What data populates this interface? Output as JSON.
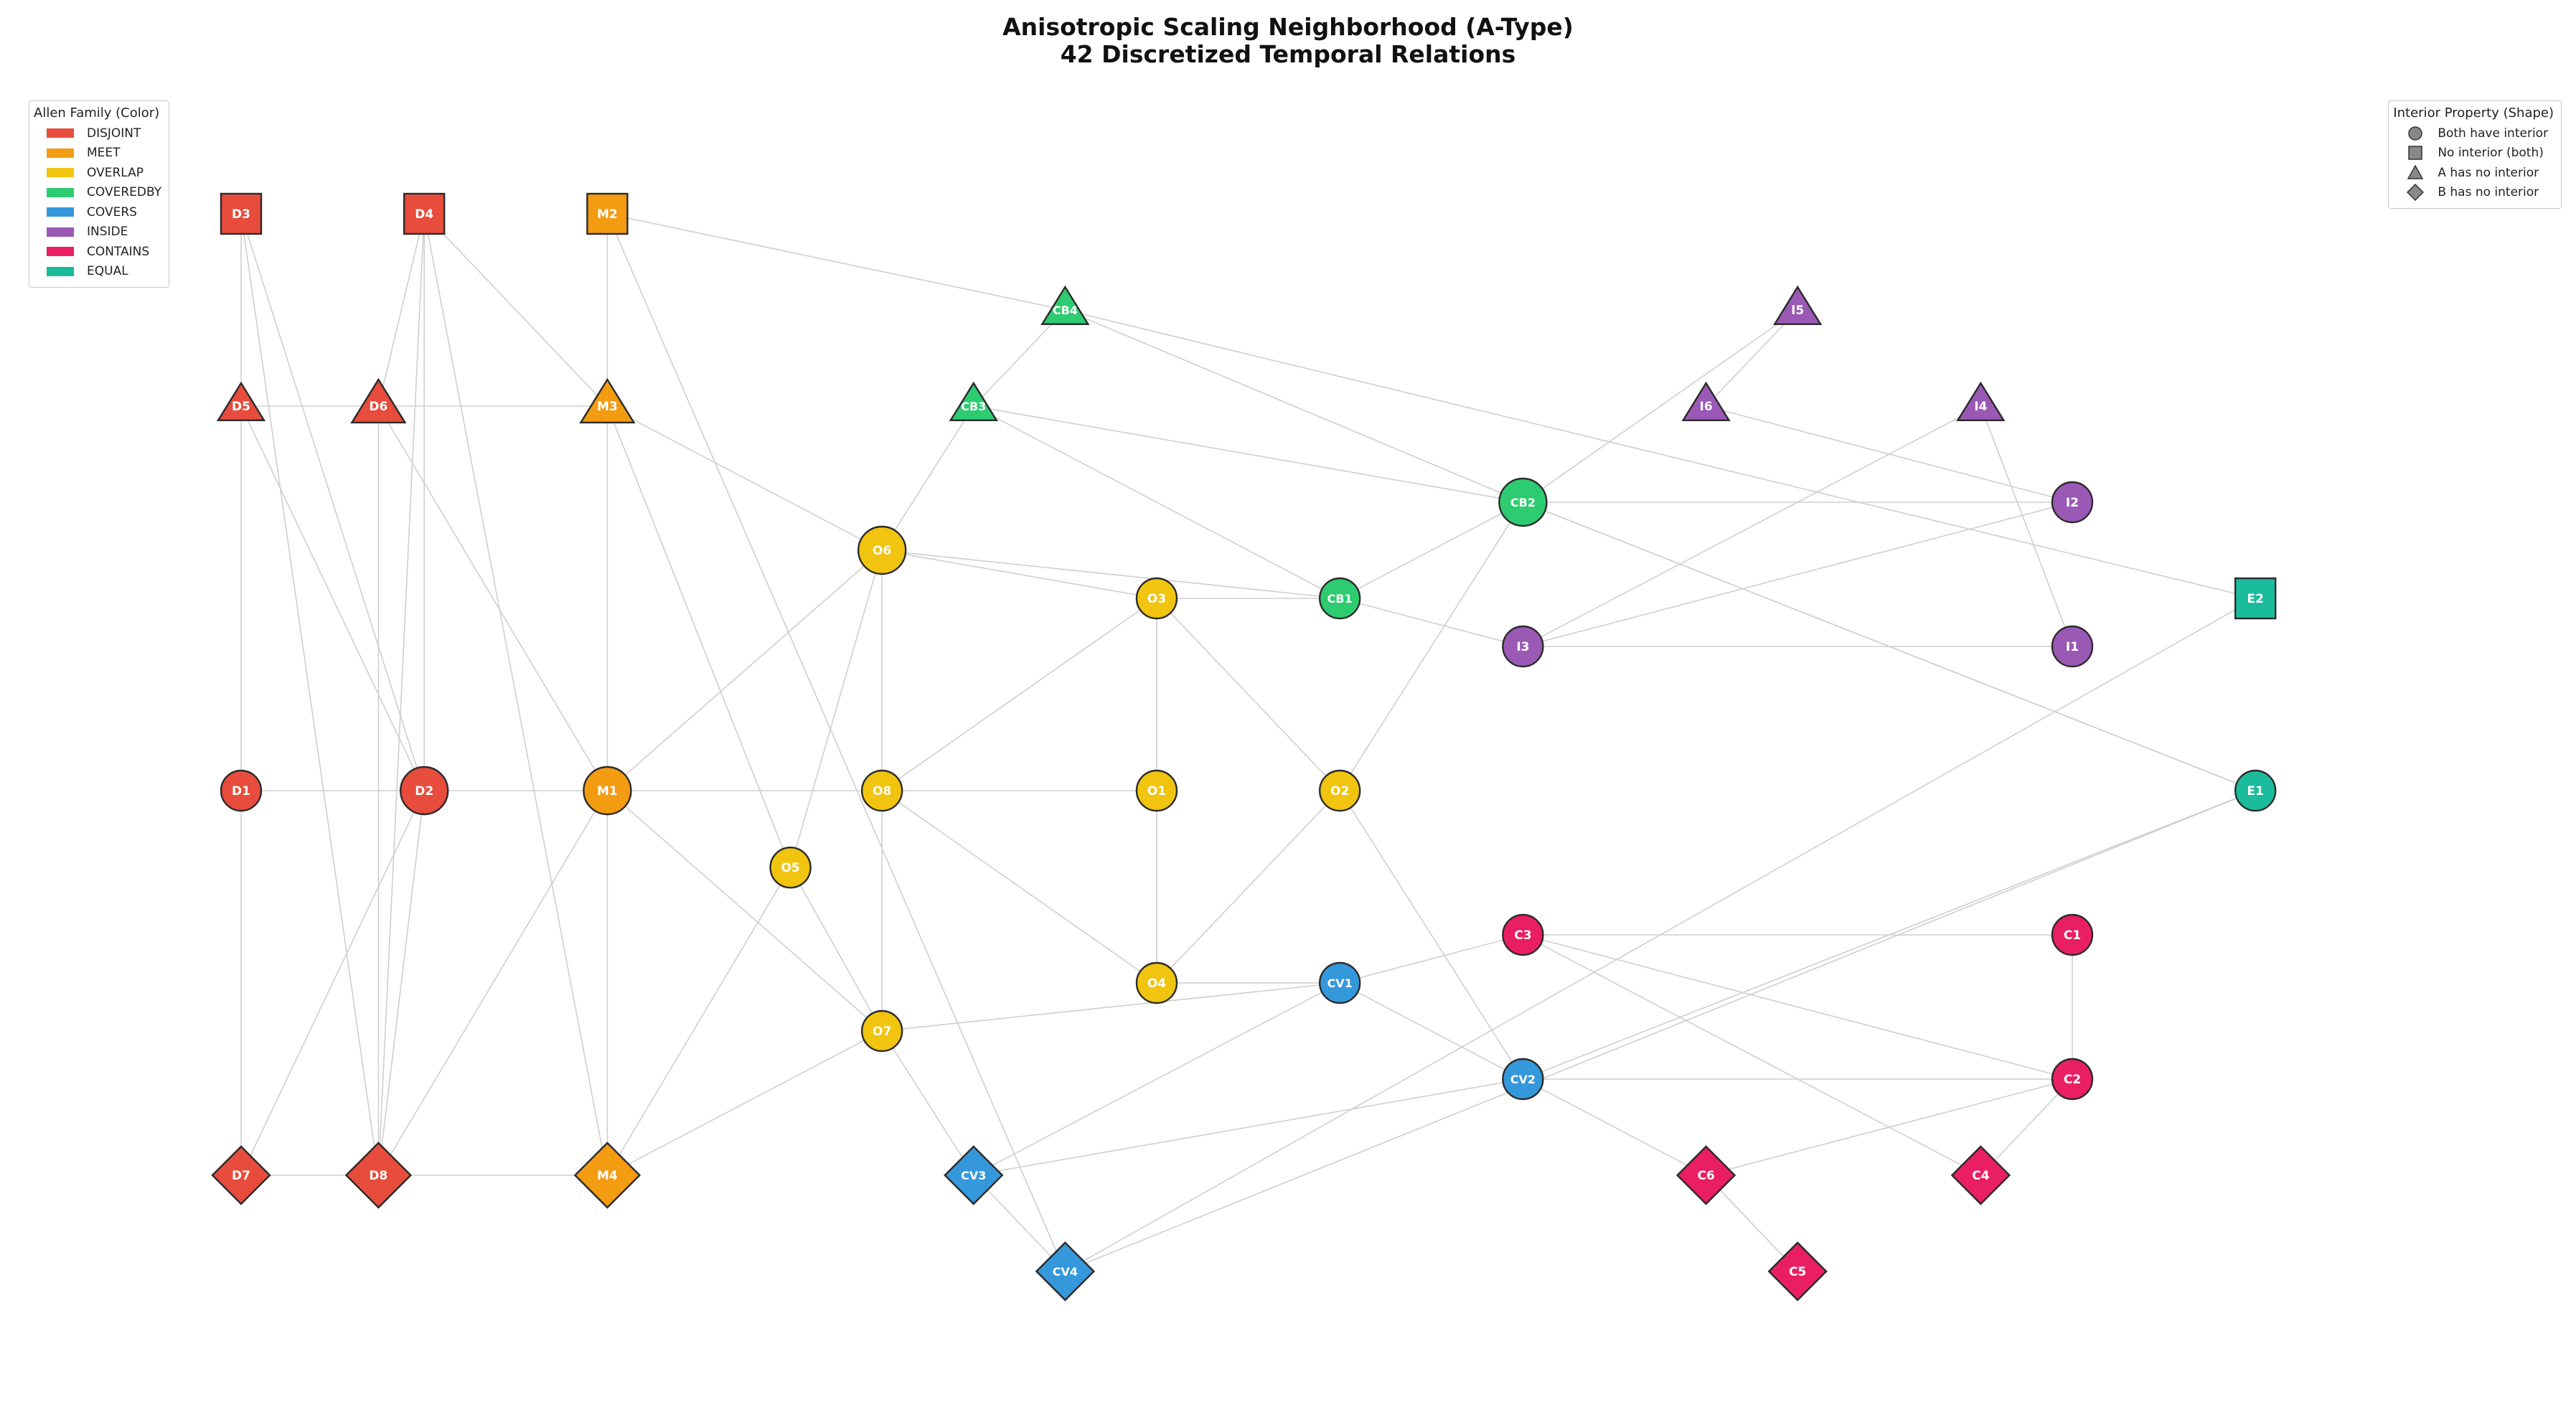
{
  "title": {
    "line1": "Anisotropic Scaling Neighborhood (A-Type)",
    "line2": "42 Discretized Temporal Relations"
  },
  "family_legend": {
    "title": "Allen Family (Color)",
    "items": [
      {
        "label": "DISJOINT",
        "color": "#e74c3c"
      },
      {
        "label": "MEET",
        "color": "#f39c12"
      },
      {
        "label": "OVERLAP",
        "color": "#f1c40f"
      },
      {
        "label": "COVEREDBY",
        "color": "#2ecc71"
      },
      {
        "label": "COVERS",
        "color": "#3498db"
      },
      {
        "label": "INSIDE",
        "color": "#9b59b6"
      },
      {
        "label": "CONTAINS",
        "color": "#e91e63"
      },
      {
        "label": "EQUAL",
        "color": "#1abc9c"
      }
    ]
  },
  "shape_legend": {
    "title": "Interior Property (Shape)",
    "items": [
      {
        "label": "Both have interior",
        "shape": "circle"
      },
      {
        "label": "No interior (both)",
        "shape": "square"
      },
      {
        "label": "A has no interior",
        "shape": "triangle"
      },
      {
        "label": "B has no interior",
        "shape": "diamond"
      }
    ]
  },
  "nodes": [
    {
      "id": "D3",
      "family": "DISJOINT",
      "shape": "square",
      "col": 0,
      "row": 0
    },
    {
      "id": "D4",
      "family": "DISJOINT",
      "shape": "square",
      "col": 2,
      "row": 0
    },
    {
      "id": "M2",
      "family": "MEET",
      "shape": "square",
      "col": 4,
      "row": 0
    },
    {
      "id": "CB4",
      "family": "COVEREDBY",
      "shape": "triangle",
      "col": 9,
      "row": 1
    },
    {
      "id": "I5",
      "family": "INSIDE",
      "shape": "triangle",
      "col": 17,
      "row": 1
    },
    {
      "id": "D5",
      "family": "DISJOINT",
      "shape": "triangle",
      "col": 0,
      "row": 2
    },
    {
      "id": "D6",
      "family": "DISJOINT",
      "shape": "triangle",
      "col": 1.5,
      "row": 2
    },
    {
      "id": "M3",
      "family": "MEET",
      "shape": "triangle",
      "col": 4,
      "row": 2
    },
    {
      "id": "CB3",
      "family": "COVEREDBY",
      "shape": "triangle",
      "col": 8,
      "row": 2
    },
    {
      "id": "I6",
      "family": "INSIDE",
      "shape": "triangle",
      "col": 16,
      "row": 2
    },
    {
      "id": "I4",
      "family": "INSIDE",
      "shape": "triangle",
      "col": 19,
      "row": 2
    },
    {
      "id": "CB2",
      "family": "COVEREDBY",
      "shape": "circle",
      "col": 14,
      "row": 3
    },
    {
      "id": "I2",
      "family": "INSIDE",
      "shape": "circle",
      "col": 20,
      "row": 3
    },
    {
      "id": "O6",
      "family": "OVERLAP",
      "shape": "circle",
      "col": 7,
      "row": 3.5
    },
    {
      "id": "O3",
      "family": "OVERLAP",
      "shape": "circle",
      "col": 10,
      "row": 4
    },
    {
      "id": "CB1",
      "family": "COVEREDBY",
      "shape": "circle",
      "col": 12,
      "row": 4
    },
    {
      "id": "E2",
      "family": "EQUAL",
      "shape": "square",
      "col": 22,
      "row": 4
    },
    {
      "id": "I3",
      "family": "INSIDE",
      "shape": "circle",
      "col": 14,
      "row": 4.5
    },
    {
      "id": "I1",
      "family": "INSIDE",
      "shape": "circle",
      "col": 20,
      "row": 4.5
    },
    {
      "id": "D1",
      "family": "DISJOINT",
      "shape": "circle",
      "col": 0,
      "row": 6
    },
    {
      "id": "D2",
      "family": "DISJOINT",
      "shape": "circle",
      "col": 2,
      "row": 6
    },
    {
      "id": "M1",
      "family": "MEET",
      "shape": "circle",
      "col": 4,
      "row": 6
    },
    {
      "id": "O8",
      "family": "OVERLAP",
      "shape": "circle",
      "col": 7,
      "row": 6
    },
    {
      "id": "O1",
      "family": "OVERLAP",
      "shape": "circle",
      "col": 10,
      "row": 6
    },
    {
      "id": "O2",
      "family": "OVERLAP",
      "shape": "circle",
      "col": 12,
      "row": 6
    },
    {
      "id": "E1",
      "family": "EQUAL",
      "shape": "circle",
      "col": 22,
      "row": 6
    },
    {
      "id": "O5",
      "family": "OVERLAP",
      "shape": "circle",
      "col": 6,
      "row": 6.8
    },
    {
      "id": "C3",
      "family": "CONTAINS",
      "shape": "circle",
      "col": 14,
      "row": 7.5
    },
    {
      "id": "C1",
      "family": "CONTAINS",
      "shape": "circle",
      "col": 20,
      "row": 7.5
    },
    {
      "id": "O4",
      "family": "OVERLAP",
      "shape": "circle",
      "col": 10,
      "row": 8
    },
    {
      "id": "CV1",
      "family": "COVERS",
      "shape": "circle",
      "col": 12,
      "row": 8
    },
    {
      "id": "O7",
      "family": "OVERLAP",
      "shape": "circle",
      "col": 7,
      "row": 8.5
    },
    {
      "id": "CV2",
      "family": "COVERS",
      "shape": "circle",
      "col": 14,
      "row": 9
    },
    {
      "id": "C2",
      "family": "CONTAINS",
      "shape": "circle",
      "col": 20,
      "row": 9
    },
    {
      "id": "D7",
      "family": "DISJOINT",
      "shape": "diamond",
      "col": 0,
      "row": 10
    },
    {
      "id": "D8",
      "family": "DISJOINT",
      "shape": "diamond",
      "col": 1.5,
      "row": 10
    },
    {
      "id": "M4",
      "family": "MEET",
      "shape": "diamond",
      "col": 4,
      "row": 10
    },
    {
      "id": "CV3",
      "family": "COVERS",
      "shape": "diamond",
      "col": 8,
      "row": 10
    },
    {
      "id": "C6",
      "family": "CONTAINS",
      "shape": "diamond",
      "col": 16,
      "row": 10
    },
    {
      "id": "C4",
      "family": "CONTAINS",
      "shape": "diamond",
      "col": 19,
      "row": 10
    },
    {
      "id": "CV4",
      "family": "COVERS",
      "shape": "diamond",
      "col": 9,
      "row": 11
    },
    {
      "id": "C5",
      "family": "CONTAINS",
      "shape": "diamond",
      "col": 17,
      "row": 11
    }
  ],
  "edges": [
    [
      "D3",
      "D5"
    ],
    [
      "D3",
      "D2"
    ],
    [
      "D3",
      "D8"
    ],
    [
      "D4",
      "D6"
    ],
    [
      "D4",
      "M3"
    ],
    [
      "D4",
      "M4"
    ],
    [
      "D4",
      "D2"
    ],
    [
      "D4",
      "D8"
    ],
    [
      "M2",
      "M3"
    ],
    [
      "M2",
      "CB4"
    ],
    [
      "M2",
      "CV4"
    ],
    [
      "D5",
      "D6"
    ],
    [
      "D6",
      "M3"
    ],
    [
      "D5",
      "D1"
    ],
    [
      "D5",
      "D2"
    ],
    [
      "D6",
      "M1"
    ],
    [
      "D6",
      "D8"
    ],
    [
      "M3",
      "M1"
    ],
    [
      "M3",
      "O6"
    ],
    [
      "M3",
      "O5"
    ],
    [
      "CB4",
      "CB3"
    ],
    [
      "CB4",
      "CB2"
    ],
    [
      "CB4",
      "E2"
    ],
    [
      "I5",
      "I6"
    ],
    [
      "I5",
      "CB2"
    ],
    [
      "I6",
      "I2"
    ],
    [
      "I4",
      "I1"
    ],
    [
      "I4",
      "I3"
    ],
    [
      "CB3",
      "O6"
    ],
    [
      "CB3",
      "CB2"
    ],
    [
      "CB3",
      "CB1"
    ],
    [
      "CB2",
      "I2"
    ],
    [
      "CB2",
      "O2"
    ],
    [
      "CB2",
      "CB1"
    ],
    [
      "CB2",
      "E1"
    ],
    [
      "CB2",
      "E1"
    ],
    [
      "O6",
      "O3"
    ],
    [
      "O6",
      "M1"
    ],
    [
      "O6",
      "O5"
    ],
    [
      "O6",
      "O8"
    ],
    [
      "O3",
      "O1"
    ],
    [
      "O3",
      "CB1"
    ],
    [
      "O3",
      "O8"
    ],
    [
      "O3",
      "O2"
    ],
    [
      "CB1",
      "I3"
    ],
    [
      "CB1",
      "O6"
    ],
    [
      "I3",
      "I2"
    ],
    [
      "I3",
      "I1"
    ],
    [
      "D1",
      "D2"
    ],
    [
      "D1",
      "D7"
    ],
    [
      "D2",
      "M1"
    ],
    [
      "D2",
      "D8"
    ],
    [
      "D2",
      "D7"
    ],
    [
      "M1",
      "O8"
    ],
    [
      "M1",
      "M4"
    ],
    [
      "M1",
      "O7"
    ],
    [
      "M1",
      "D8"
    ],
    [
      "O8",
      "O1"
    ],
    [
      "O8",
      "O4"
    ],
    [
      "O8",
      "O7"
    ],
    [
      "O1",
      "O4"
    ],
    [
      "O2",
      "O4"
    ],
    [
      "O2",
      "CV2"
    ],
    [
      "O5",
      "O7"
    ],
    [
      "O5",
      "M4"
    ],
    [
      "C3",
      "C1"
    ],
    [
      "C3",
      "CV1"
    ],
    [
      "C3",
      "C2"
    ],
    [
      "C3",
      "C4"
    ],
    [
      "C1",
      "C2"
    ],
    [
      "C2",
      "C4"
    ],
    [
      "C2",
      "C6"
    ],
    [
      "O4",
      "CV1"
    ],
    [
      "CV1",
      "O7"
    ],
    [
      "CV1",
      "CV2"
    ],
    [
      "CV1",
      "CV3"
    ],
    [
      "O7",
      "CV3"
    ],
    [
      "O7",
      "M4"
    ],
    [
      "CV2",
      "C2"
    ],
    [
      "CV2",
      "E1"
    ],
    [
      "CV2",
      "CV3"
    ],
    [
      "CV2",
      "C6"
    ],
    [
      "E2",
      "CV4"
    ],
    [
      "E1",
      "CV4"
    ],
    [
      "D7",
      "D8"
    ],
    [
      "D8",
      "M4"
    ],
    [
      "CV3",
      "CV4"
    ],
    [
      "C6",
      "C5"
    ],
    [
      "C6",
      "C5"
    ]
  ]
}
